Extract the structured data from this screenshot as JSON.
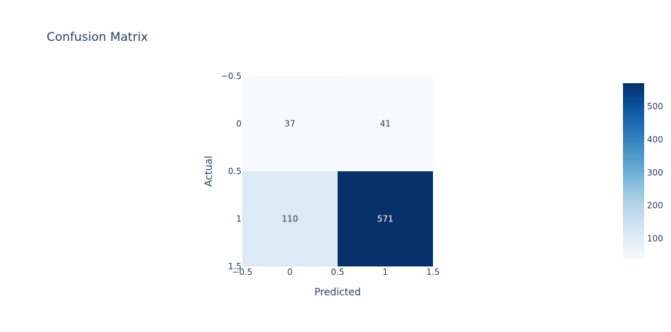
{
  "chart_data": {
    "type": "heatmap",
    "title": "Confusion Matrix",
    "xlabel": "Predicted",
    "ylabel": "Actual",
    "x": [
      0,
      1
    ],
    "y": [
      0,
      1
    ],
    "z": [
      [
        37,
        41
      ],
      [
        110,
        571
      ]
    ],
    "x_range": [
      -0.5,
      1.5
    ],
    "y_range": [
      -0.5,
      1.5
    ],
    "x_ticks": [
      "−0.5",
      "0",
      "0.5",
      "1",
      "1.5"
    ],
    "y_ticks": [
      "−0.5",
      "0",
      "0.5",
      "1",
      "1.5"
    ],
    "colorscale": "Blues",
    "colorbar_ticks": [
      "100",
      "200",
      "300",
      "400",
      "500"
    ],
    "colorbar_range": [
      37,
      571
    ],
    "colors": {
      "low": "#f7fbff",
      "high": "#08306b",
      "text_dark": "#2a3f5f",
      "text_light": "#ffffff"
    }
  }
}
